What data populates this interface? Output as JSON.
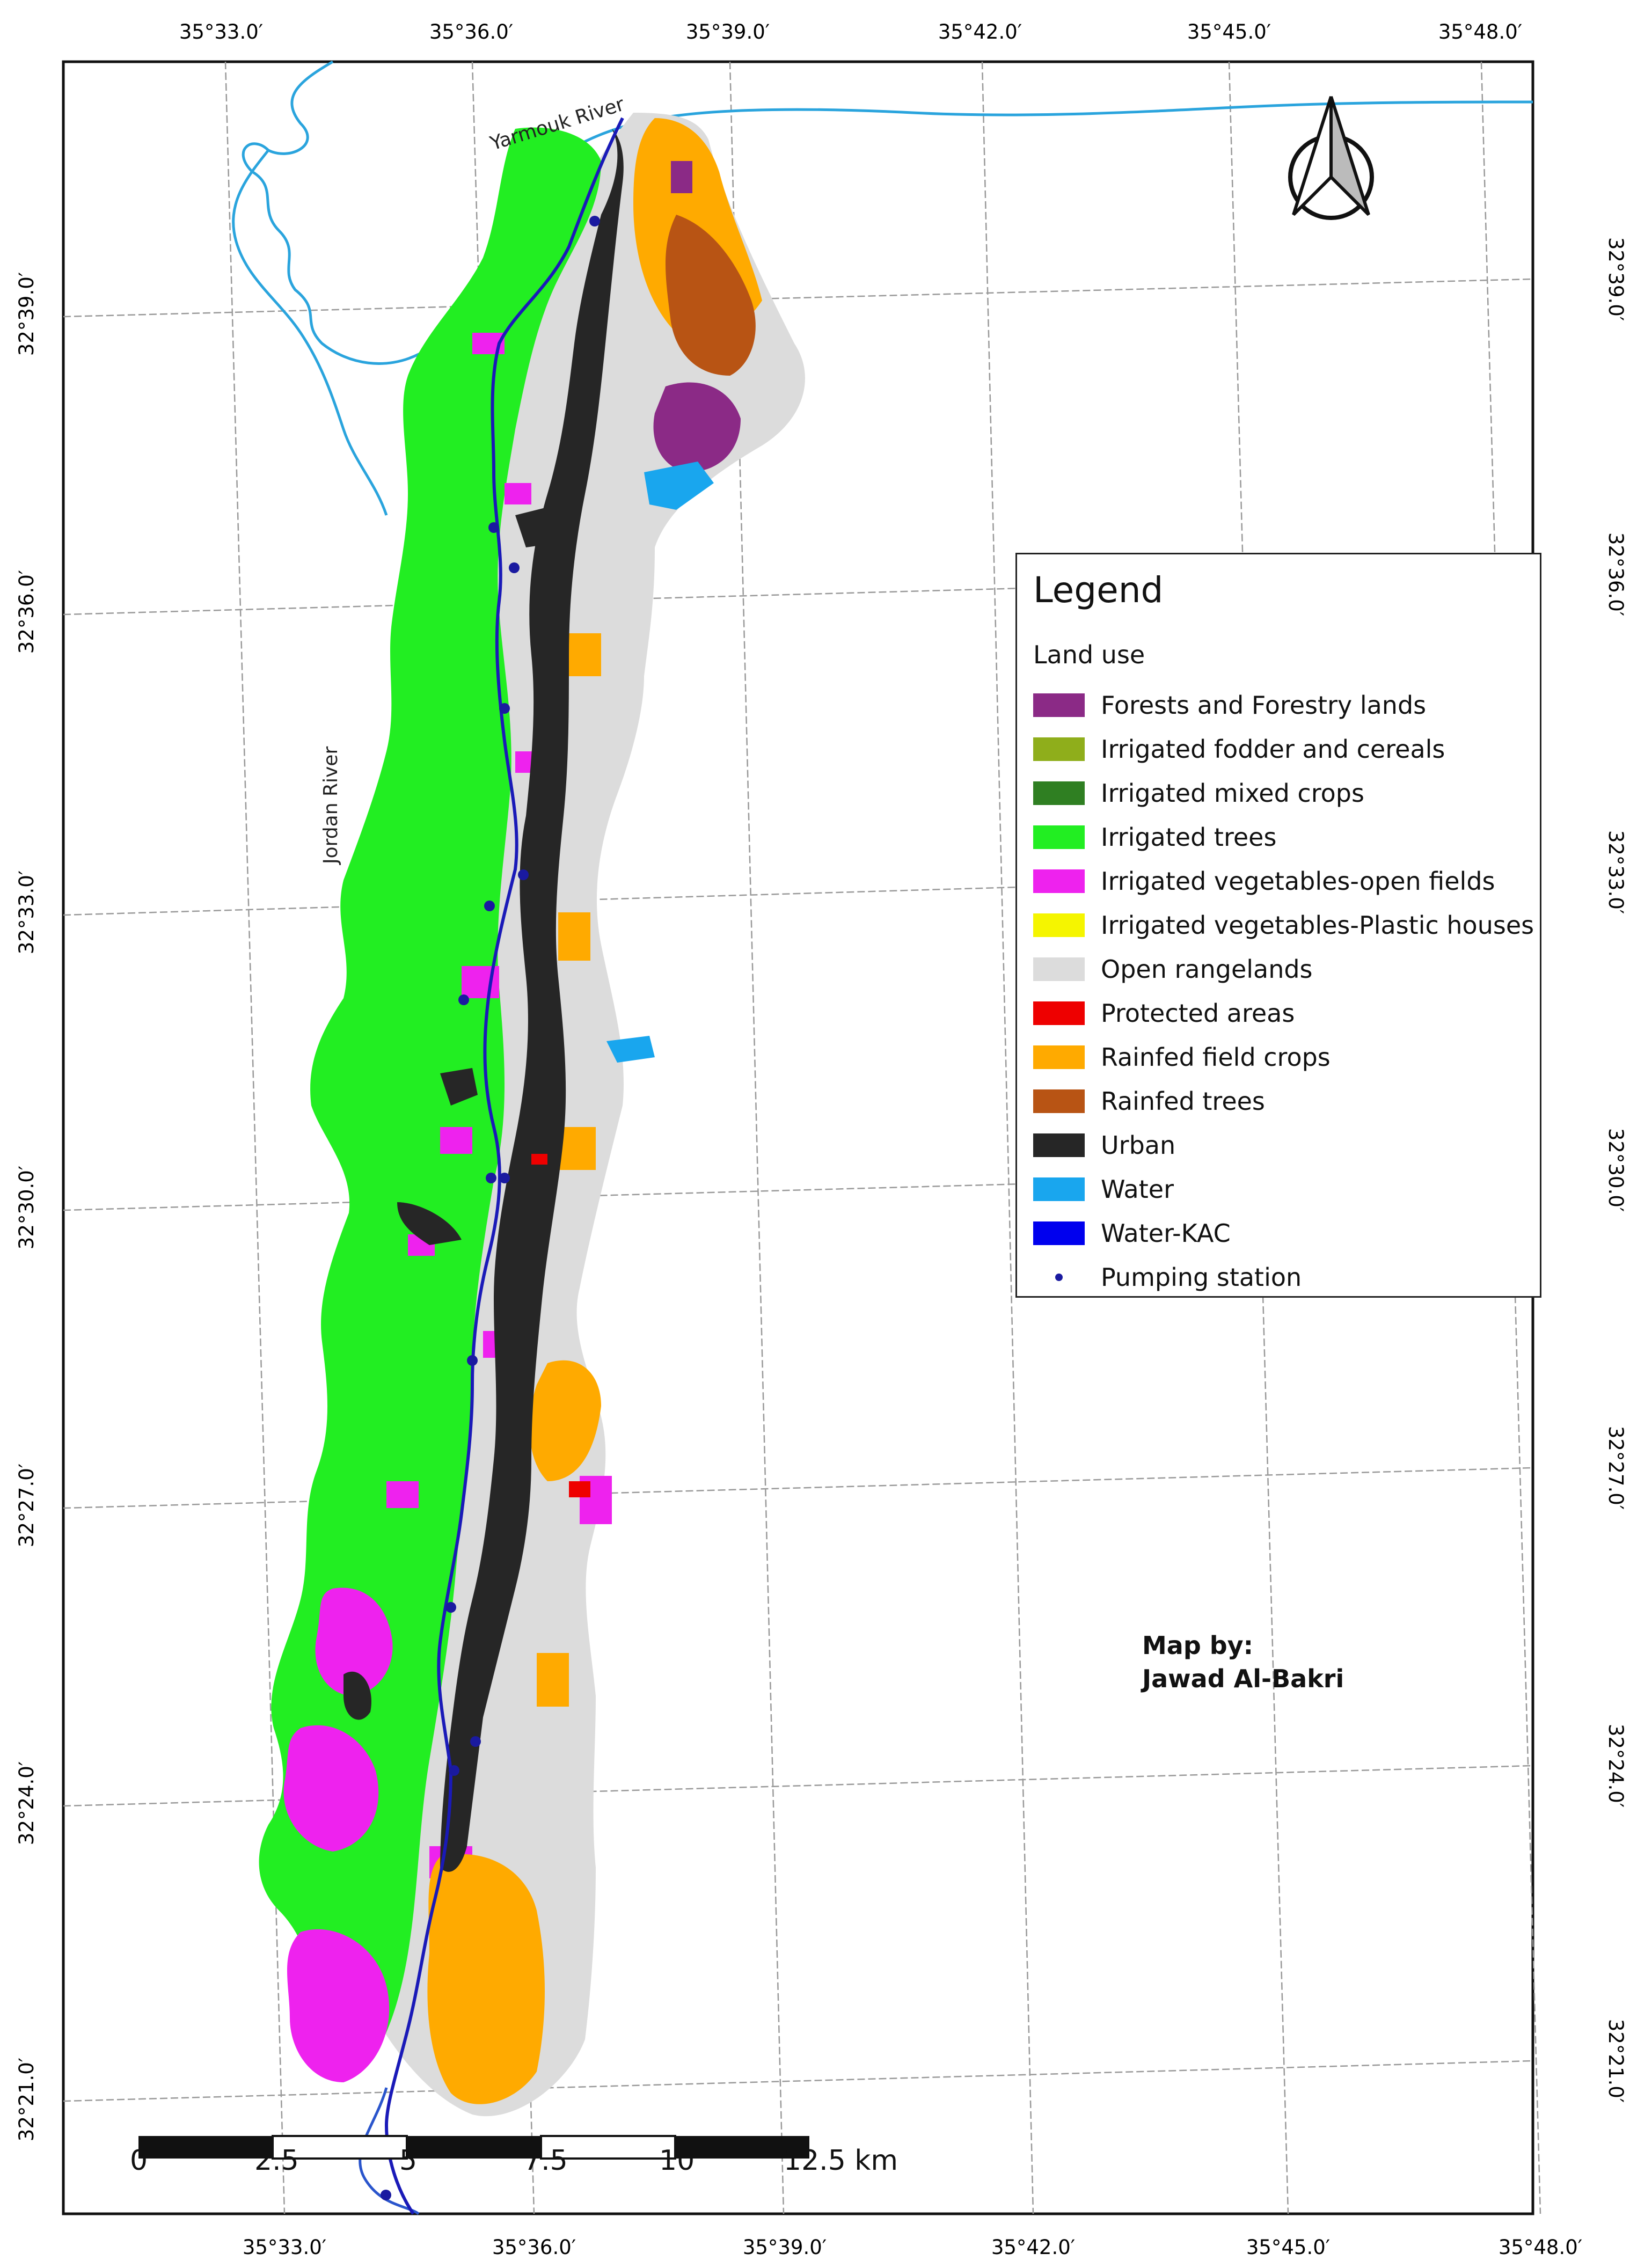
{
  "map": {
    "top_longitude_labels": [
      "35°33.0′",
      "35°36.0′",
      "35°39.0′",
      "35°42.0′",
      "35°45.0′",
      "35°48.0′"
    ],
    "bottom_longitude_labels": [
      "35°33.0′",
      "35°36.0′",
      "35°39.0′",
      "35°42.0′",
      "35°45.0′",
      "35°48.0′"
    ],
    "left_latitude_labels": [
      "32°39.0′",
      "32°36.0′",
      "32°33.0′",
      "32°30.0′",
      "32°27.0′",
      "32°24.0′",
      "32°21.0′"
    ],
    "right_latitude_labels": [
      "32°39.0′",
      "32°36.0′",
      "32°33.0′",
      "32°30.0′",
      "32°27.0′",
      "32°24.0′",
      "32°21.0′"
    ],
    "river_labels": {
      "yarmouk": "Yarmouk River",
      "jordan": "Jordan River"
    },
    "north_arrow_icon": "north-arrow-icon"
  },
  "legend": {
    "title": "Legend",
    "subtitle": "Land use",
    "items": [
      {
        "label": "Forests and Forestry lands",
        "color": "#8b2a86"
      },
      {
        "label": "Irrigated fodder and cereals",
        "color": "#8fae1b"
      },
      {
        "label": "Irrigated mixed crops",
        "color": "#2f7f22"
      },
      {
        "label": "Irrigated trees",
        "color": "#22ee22"
      },
      {
        "label": "Irrigated vegetables-open fields",
        "color": "#ee22ee"
      },
      {
        "label": "Irrigated vegetables-Plastic houses",
        "color": "#f5f500"
      },
      {
        "label": "Open rangelands",
        "color": "#dcdcdc"
      },
      {
        "label": "Protected areas",
        "color": "#ee0000"
      },
      {
        "label": "Rainfed field crops",
        "color": "#ffaa00"
      },
      {
        "label": "Rainfed trees",
        "color": "#b85414"
      },
      {
        "label": "Urban",
        "color": "#262626"
      },
      {
        "label": "Water",
        "color": "#19a6ee"
      },
      {
        "label": "Water-KAC",
        "color": "#0000ee"
      },
      {
        "label": "Pumping station",
        "color": "#1a1aa0"
      }
    ]
  },
  "credit": {
    "line1": "Map by:",
    "line2": "Jawad Al-Bakri"
  },
  "scale_bar": {
    "labels": [
      "0",
      "2.5",
      "5",
      "7.5",
      "10",
      "12.5 km"
    ]
  }
}
